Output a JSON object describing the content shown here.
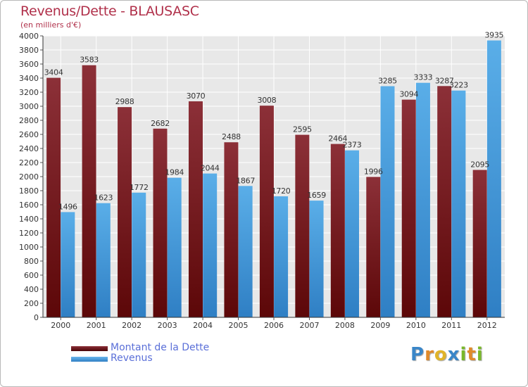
{
  "chart_data": {
    "type": "bar",
    "title": "Revenus/Dette - BLAUSASC",
    "subtitle": "(en milliers d'€)",
    "categories": [
      "2000",
      "2001",
      "2002",
      "2003",
      "2004",
      "2005",
      "2006",
      "2007",
      "2008",
      "2009",
      "2010",
      "2011",
      "2012"
    ],
    "ylim": [
      0,
      4000
    ],
    "yticks": [
      0,
      200,
      400,
      600,
      800,
      1000,
      1200,
      1400,
      1600,
      1800,
      2000,
      2200,
      2400,
      2600,
      2800,
      3000,
      3200,
      3400,
      3600,
      3800,
      4000
    ],
    "grid": true,
    "series": [
      {
        "name": "Montant de la Dette",
        "color": "#7a1b22",
        "values": [
          3404,
          3583,
          2988,
          2682,
          3070,
          2488,
          3008,
          2595,
          2464,
          1996,
          3094,
          3287,
          2095
        ],
        "labels": [
          "3404",
          "3583",
          "2988",
          "2682",
          "3070",
          "2488",
          "3008",
          "2595",
          "2464",
          "1996",
          "3094",
          "3287",
          "2095"
        ]
      },
      {
        "name": "Revenus",
        "color": "#4a9ee0",
        "values": [
          1496,
          1623,
          1772,
          1984,
          2044,
          1867,
          1720,
          1659,
          2373,
          3285,
          3333,
          3223,
          3935
        ],
        "labels": [
          "1496",
          "1623",
          "1772",
          "1984",
          "2044",
          "1867",
          "1720",
          "1659",
          "2373",
          "3285",
          "3333",
          "3223",
          "3935"
        ]
      }
    ],
    "legend": [
      {
        "label": "Montant de la Dette",
        "color": "#6a0f14"
      },
      {
        "label": "Revenus",
        "color": "#3d95dd"
      }
    ]
  },
  "logo": {
    "letters": [
      "P",
      "r",
      "o",
      "x",
      "i",
      "t",
      "i"
    ],
    "colors": [
      "#3a86c8",
      "#e08a2a",
      "#e0b42a",
      "#3a86c8",
      "#7ab82a",
      "#e08a2a",
      "#7ab82a"
    ]
  }
}
